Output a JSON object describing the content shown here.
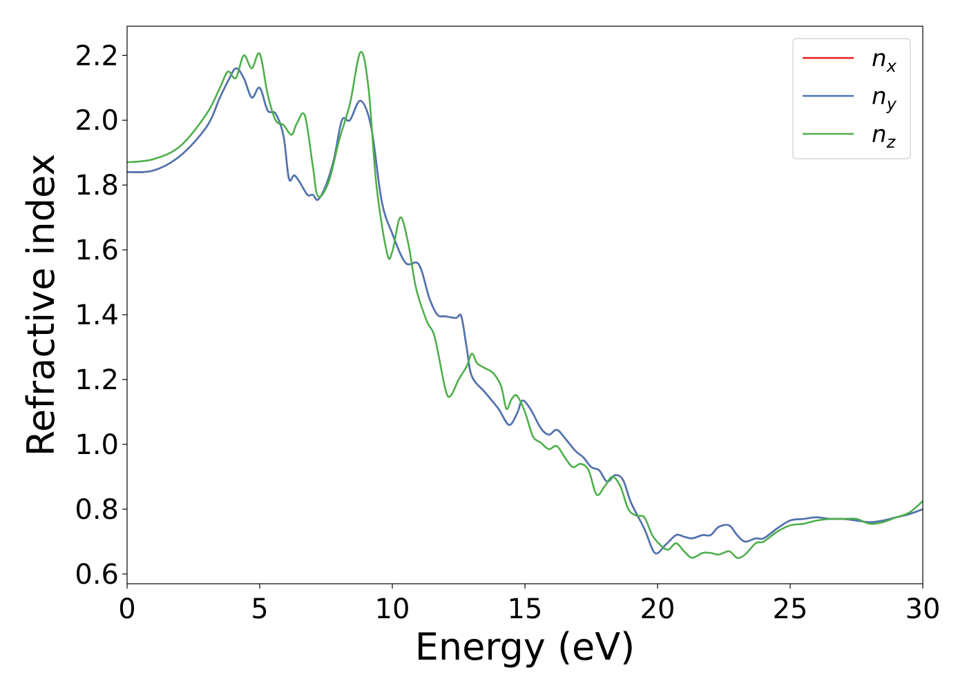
{
  "chart_data": {
    "type": "line",
    "title": "",
    "xlabel": "Energy (eV)",
    "ylabel": "Refractive index",
    "xlim": [
      0,
      30
    ],
    "ylim": [
      0.57,
      2.29
    ],
    "xticks": [
      0,
      5,
      10,
      15,
      20,
      25,
      30
    ],
    "xtick_labels": [
      "0",
      "5",
      "10",
      "15",
      "20",
      "25",
      "30"
    ],
    "yticks": [
      0.6,
      0.8,
      1.0,
      1.2,
      1.4,
      1.6,
      1.8,
      2.0,
      2.2
    ],
    "ytick_labels": [
      "0.6",
      "0.8",
      "1.0",
      "1.2",
      "1.4",
      "1.6",
      "1.8",
      "2.0",
      "2.2"
    ],
    "grid": false,
    "legend_position": "top-right",
    "series": [
      {
        "name": "n_x",
        "label_base": "n",
        "label_sub": "x",
        "color": "#e41a1c",
        "points": [
          [
            0,
            1.84
          ],
          [
            1,
            1.845
          ],
          [
            2,
            1.89
          ],
          [
            3,
            1.98
          ],
          [
            3.5,
            2.07
          ],
          [
            3.8,
            2.12
          ],
          [
            4.1,
            2.16
          ],
          [
            4.4,
            2.13
          ],
          [
            4.7,
            2.07
          ],
          [
            5.0,
            2.1
          ],
          [
            5.3,
            2.03
          ],
          [
            5.6,
            2.02
          ],
          [
            5.9,
            1.95
          ],
          [
            6.1,
            1.82
          ],
          [
            6.3,
            1.83
          ],
          [
            6.5,
            1.81
          ],
          [
            6.8,
            1.77
          ],
          [
            7.0,
            1.77
          ],
          [
            7.2,
            1.755
          ],
          [
            7.5,
            1.8
          ],
          [
            7.8,
            1.88
          ],
          [
            8.1,
            2.0
          ],
          [
            8.4,
            2.0
          ],
          [
            8.8,
            2.06
          ],
          [
            9.2,
            1.98
          ],
          [
            9.6,
            1.75
          ],
          [
            10.0,
            1.65
          ],
          [
            10.5,
            1.56
          ],
          [
            11.0,
            1.555
          ],
          [
            11.4,
            1.45
          ],
          [
            11.7,
            1.4
          ],
          [
            12.0,
            1.395
          ],
          [
            12.4,
            1.39
          ],
          [
            12.6,
            1.395
          ],
          [
            12.8,
            1.3
          ],
          [
            13.0,
            1.21
          ],
          [
            13.5,
            1.16
          ],
          [
            14.0,
            1.11
          ],
          [
            14.4,
            1.06
          ],
          [
            14.7,
            1.095
          ],
          [
            14.9,
            1.135
          ],
          [
            15.2,
            1.11
          ],
          [
            15.6,
            1.05
          ],
          [
            15.9,
            1.03
          ],
          [
            16.2,
            1.045
          ],
          [
            16.5,
            1.02
          ],
          [
            16.9,
            0.98
          ],
          [
            17.2,
            0.96
          ],
          [
            17.5,
            0.93
          ],
          [
            17.8,
            0.92
          ],
          [
            18.1,
            0.885
          ],
          [
            18.4,
            0.905
          ],
          [
            18.7,
            0.89
          ],
          [
            19.0,
            0.82
          ],
          [
            19.5,
            0.74
          ],
          [
            19.9,
            0.665
          ],
          [
            20.3,
            0.69
          ],
          [
            20.7,
            0.72
          ],
          [
            21.0,
            0.715
          ],
          [
            21.3,
            0.71
          ],
          [
            21.7,
            0.72
          ],
          [
            22.0,
            0.72
          ],
          [
            22.3,
            0.745
          ],
          [
            22.7,
            0.75
          ],
          [
            23.0,
            0.72
          ],
          [
            23.3,
            0.7
          ],
          [
            23.7,
            0.71
          ],
          [
            24.0,
            0.71
          ],
          [
            24.5,
            0.74
          ],
          [
            25.0,
            0.765
          ],
          [
            25.5,
            0.77
          ],
          [
            26.0,
            0.775
          ],
          [
            26.5,
            0.77
          ],
          [
            27.0,
            0.77
          ],
          [
            27.5,
            0.765
          ],
          [
            28.0,
            0.76
          ],
          [
            28.5,
            0.765
          ],
          [
            29.0,
            0.775
          ],
          [
            29.5,
            0.785
          ],
          [
            30.0,
            0.8
          ]
        ]
      },
      {
        "name": "n_y",
        "label_base": "n",
        "label_sub": "y",
        "color": "#4a77b4",
        "points": [
          [
            0,
            1.84
          ],
          [
            1,
            1.845
          ],
          [
            2,
            1.89
          ],
          [
            3,
            1.98
          ],
          [
            3.5,
            2.07
          ],
          [
            3.8,
            2.12
          ],
          [
            4.1,
            2.16
          ],
          [
            4.4,
            2.13
          ],
          [
            4.7,
            2.07
          ],
          [
            5.0,
            2.1
          ],
          [
            5.3,
            2.03
          ],
          [
            5.6,
            2.02
          ],
          [
            5.9,
            1.95
          ],
          [
            6.1,
            1.82
          ],
          [
            6.3,
            1.83
          ],
          [
            6.5,
            1.81
          ],
          [
            6.8,
            1.77
          ],
          [
            7.0,
            1.77
          ],
          [
            7.2,
            1.755
          ],
          [
            7.5,
            1.8
          ],
          [
            7.8,
            1.88
          ],
          [
            8.1,
            2.0
          ],
          [
            8.4,
            2.0
          ],
          [
            8.8,
            2.06
          ],
          [
            9.2,
            1.98
          ],
          [
            9.6,
            1.75
          ],
          [
            10.0,
            1.65
          ],
          [
            10.5,
            1.56
          ],
          [
            11.0,
            1.555
          ],
          [
            11.4,
            1.45
          ],
          [
            11.7,
            1.4
          ],
          [
            12.0,
            1.395
          ],
          [
            12.4,
            1.39
          ],
          [
            12.6,
            1.395
          ],
          [
            12.8,
            1.3
          ],
          [
            13.0,
            1.21
          ],
          [
            13.5,
            1.16
          ],
          [
            14.0,
            1.11
          ],
          [
            14.4,
            1.06
          ],
          [
            14.7,
            1.095
          ],
          [
            14.9,
            1.135
          ],
          [
            15.2,
            1.11
          ],
          [
            15.6,
            1.05
          ],
          [
            15.9,
            1.03
          ],
          [
            16.2,
            1.045
          ],
          [
            16.5,
            1.02
          ],
          [
            16.9,
            0.98
          ],
          [
            17.2,
            0.96
          ],
          [
            17.5,
            0.93
          ],
          [
            17.8,
            0.92
          ],
          [
            18.1,
            0.885
          ],
          [
            18.4,
            0.905
          ],
          [
            18.7,
            0.89
          ],
          [
            19.0,
            0.82
          ],
          [
            19.5,
            0.74
          ],
          [
            19.9,
            0.665
          ],
          [
            20.3,
            0.69
          ],
          [
            20.7,
            0.72
          ],
          [
            21.0,
            0.715
          ],
          [
            21.3,
            0.71
          ],
          [
            21.7,
            0.72
          ],
          [
            22.0,
            0.72
          ],
          [
            22.3,
            0.745
          ],
          [
            22.7,
            0.75
          ],
          [
            23.0,
            0.72
          ],
          [
            23.3,
            0.7
          ],
          [
            23.7,
            0.71
          ],
          [
            24.0,
            0.71
          ],
          [
            24.5,
            0.74
          ],
          [
            25.0,
            0.765
          ],
          [
            25.5,
            0.77
          ],
          [
            26.0,
            0.775
          ],
          [
            26.5,
            0.77
          ],
          [
            27.0,
            0.77
          ],
          [
            27.5,
            0.765
          ],
          [
            28.0,
            0.76
          ],
          [
            28.5,
            0.765
          ],
          [
            29.0,
            0.775
          ],
          [
            29.5,
            0.785
          ],
          [
            30.0,
            0.8
          ]
        ]
      },
      {
        "name": "n_z",
        "label_base": "n",
        "label_sub": "z",
        "color": "#4daf4a",
        "points": [
          [
            0,
            1.87
          ],
          [
            1,
            1.88
          ],
          [
            2,
            1.92
          ],
          [
            3,
            2.02
          ],
          [
            3.5,
            2.1
          ],
          [
            3.8,
            2.15
          ],
          [
            4.1,
            2.13
          ],
          [
            4.4,
            2.2
          ],
          [
            4.7,
            2.16
          ],
          [
            5.0,
            2.205
          ],
          [
            5.3,
            2.08
          ],
          [
            5.6,
            2.0
          ],
          [
            5.9,
            1.985
          ],
          [
            6.2,
            1.955
          ],
          [
            6.4,
            1.99
          ],
          [
            6.7,
            2.015
          ],
          [
            7.0,
            1.86
          ],
          [
            7.2,
            1.765
          ],
          [
            7.6,
            1.81
          ],
          [
            8.0,
            1.94
          ],
          [
            8.4,
            2.05
          ],
          [
            8.8,
            2.21
          ],
          [
            9.1,
            2.1
          ],
          [
            9.4,
            1.8
          ],
          [
            9.8,
            1.59
          ],
          [
            10.0,
            1.595
          ],
          [
            10.3,
            1.7
          ],
          [
            10.6,
            1.62
          ],
          [
            10.9,
            1.48
          ],
          [
            11.3,
            1.38
          ],
          [
            11.6,
            1.33
          ],
          [
            12.0,
            1.17
          ],
          [
            12.2,
            1.15
          ],
          [
            12.5,
            1.2
          ],
          [
            12.8,
            1.24
          ],
          [
            13.0,
            1.28
          ],
          [
            13.2,
            1.25
          ],
          [
            13.5,
            1.235
          ],
          [
            13.8,
            1.22
          ],
          [
            14.1,
            1.18
          ],
          [
            14.3,
            1.11
          ],
          [
            14.5,
            1.14
          ],
          [
            14.7,
            1.15
          ],
          [
            15.0,
            1.1
          ],
          [
            15.3,
            1.025
          ],
          [
            15.6,
            1.005
          ],
          [
            15.9,
            0.985
          ],
          [
            16.2,
            0.995
          ],
          [
            16.5,
            0.96
          ],
          [
            16.8,
            0.93
          ],
          [
            17.1,
            0.94
          ],
          [
            17.4,
            0.92
          ],
          [
            17.7,
            0.845
          ],
          [
            18.0,
            0.87
          ],
          [
            18.3,
            0.9
          ],
          [
            18.6,
            0.87
          ],
          [
            18.9,
            0.8
          ],
          [
            19.2,
            0.78
          ],
          [
            19.5,
            0.775
          ],
          [
            19.8,
            0.72
          ],
          [
            20.1,
            0.69
          ],
          [
            20.4,
            0.675
          ],
          [
            20.7,
            0.695
          ],
          [
            21.0,
            0.67
          ],
          [
            21.3,
            0.65
          ],
          [
            21.7,
            0.665
          ],
          [
            22.0,
            0.665
          ],
          [
            22.3,
            0.66
          ],
          [
            22.7,
            0.67
          ],
          [
            23.0,
            0.65
          ],
          [
            23.3,
            0.66
          ],
          [
            23.7,
            0.695
          ],
          [
            24.0,
            0.7
          ],
          [
            24.5,
            0.73
          ],
          [
            25.0,
            0.75
          ],
          [
            25.5,
            0.755
          ],
          [
            26.0,
            0.765
          ],
          [
            26.5,
            0.77
          ],
          [
            27.0,
            0.77
          ],
          [
            27.5,
            0.77
          ],
          [
            28.0,
            0.755
          ],
          [
            28.5,
            0.76
          ],
          [
            29.0,
            0.775
          ],
          [
            29.5,
            0.79
          ],
          [
            30.0,
            0.825
          ]
        ]
      }
    ]
  }
}
